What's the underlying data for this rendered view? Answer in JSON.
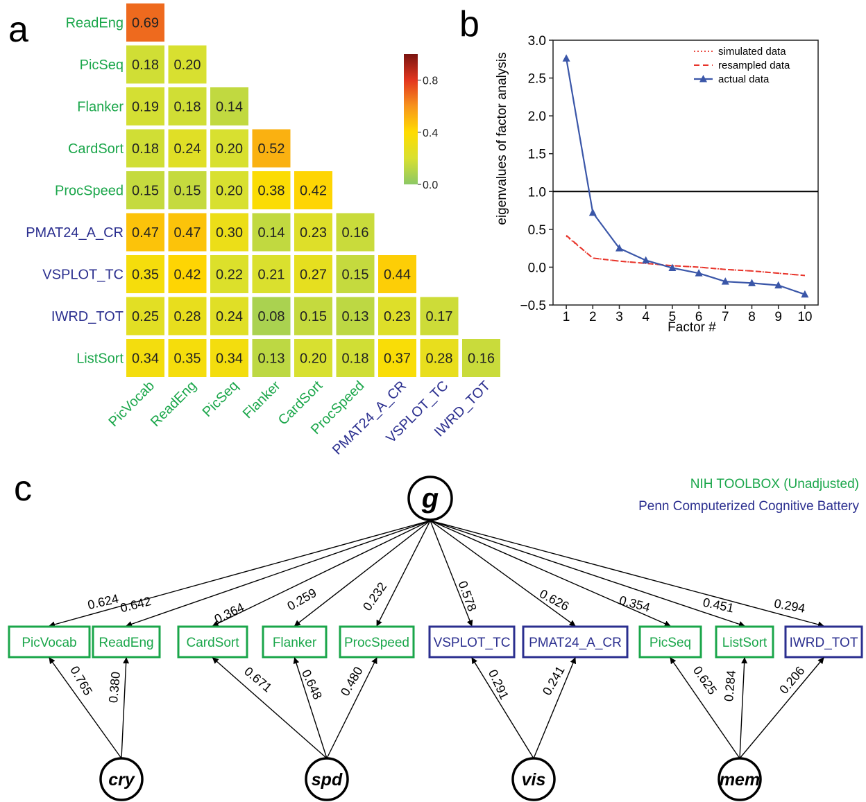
{
  "panel_labels": {
    "a": "a",
    "b": "b",
    "c": "c"
  },
  "colors": {
    "green": "#1aa64a",
    "blue": "#2b2f8f",
    "actual": "#3a56a8",
    "sim": "#e8342a"
  },
  "chart_data": [
    {
      "type": "heatmap",
      "panel": "a",
      "row_labels": [
        "ReadEng",
        "PicSeq",
        "Flanker",
        "CardSort",
        "ProcSpeed",
        "PMAT24_A_CR",
        "VSPLOT_TC",
        "IWRD_TOT",
        "ListSort"
      ],
      "col_labels": [
        "PicVocab",
        "ReadEng",
        "PicSeq",
        "Flanker",
        "CardSort",
        "ProcSpeed",
        "PMAT24_A_CR",
        "VSPLOT_TC",
        "IWRD_TOT"
      ],
      "row_colors": [
        "green",
        "green",
        "green",
        "green",
        "green",
        "blue",
        "blue",
        "blue",
        "green"
      ],
      "col_colors": [
        "green",
        "green",
        "green",
        "green",
        "green",
        "green",
        "blue",
        "blue",
        "blue"
      ],
      "values": [
        [
          0.69
        ],
        [
          0.18,
          0.2
        ],
        [
          0.19,
          0.18,
          0.14
        ],
        [
          0.18,
          0.24,
          0.2,
          0.52
        ],
        [
          0.15,
          0.15,
          0.2,
          0.38,
          0.42
        ],
        [
          0.47,
          0.47,
          0.3,
          0.14,
          0.23,
          0.16
        ],
        [
          0.35,
          0.42,
          0.22,
          0.21,
          0.27,
          0.15,
          0.44
        ],
        [
          0.25,
          0.28,
          0.24,
          0.08,
          0.15,
          0.13,
          0.23,
          0.17
        ],
        [
          0.34,
          0.35,
          0.34,
          0.13,
          0.2,
          0.18,
          0.37,
          0.28,
          0.16
        ]
      ],
      "colorbar": {
        "ticks": [
          0.0,
          0.4,
          0.8
        ],
        "tick_labels": [
          "0.0",
          "0.4",
          "0.8"
        ],
        "vmin": 0.0,
        "vmax": 1.0
      }
    },
    {
      "type": "line",
      "panel": "b",
      "xlabel": "Factor #",
      "ylabel": "eigenvalues of factor analysis",
      "x": [
        1,
        2,
        3,
        4,
        5,
        6,
        7,
        8,
        9,
        10
      ],
      "xlim": [
        0.5,
        10.5
      ],
      "ylim": [
        -0.5,
        3.0
      ],
      "xticks": [
        "1",
        "2",
        "3",
        "4",
        "5",
        "6",
        "7",
        "8",
        "9",
        "10"
      ],
      "yticks": [
        -0.5,
        0.0,
        0.5,
        1.0,
        1.5,
        2.0,
        2.5,
        3.0
      ],
      "ytick_labels": [
        "−0.5",
        "0.0",
        "0.5",
        "1.0",
        "1.5",
        "2.0",
        "2.5",
        "3.0"
      ],
      "hline": 1.0,
      "legend_position": "top-right",
      "series": [
        {
          "name": "simulated data",
          "style": "dotted",
          "values": [
            0.41,
            0.12,
            0.08,
            0.05,
            0.02,
            0.0,
            -0.03,
            -0.05,
            -0.08,
            -0.11
          ]
        },
        {
          "name": "resampled data",
          "style": "dashed",
          "values": [
            0.42,
            0.12,
            0.08,
            0.05,
            0.02,
            0.0,
            -0.03,
            -0.05,
            -0.08,
            -0.11
          ]
        },
        {
          "name": "actual data",
          "style": "solid-triangle",
          "values": [
            2.76,
            0.72,
            0.25,
            0.09,
            -0.01,
            -0.08,
            -0.19,
            -0.21,
            -0.24,
            -0.36
          ]
        }
      ]
    }
  ],
  "diagram": {
    "legend": [
      {
        "text": "NIH TOOLBOX (Unadjusted)",
        "color": "green"
      },
      {
        "text": "Penn Computerized Cognitive Battery",
        "color": "blue"
      }
    ],
    "general": "g",
    "latents": [
      "cry",
      "spd",
      "vis",
      "mem"
    ],
    "tests": [
      {
        "label": "PicVocab",
        "color": "green"
      },
      {
        "label": "ReadEng",
        "color": "green"
      },
      {
        "label": "CardSort",
        "color": "green"
      },
      {
        "label": "Flanker",
        "color": "green"
      },
      {
        "label": "ProcSpeed",
        "color": "green"
      },
      {
        "label": "VSPLOT_TC",
        "color": "blue"
      },
      {
        "label": "PMAT24_A_CR",
        "color": "blue"
      },
      {
        "label": "PicSeq",
        "color": "green"
      },
      {
        "label": "ListSort",
        "color": "green"
      },
      {
        "label": "IWRD_TOT",
        "color": "blue"
      }
    ],
    "g_loadings": [
      "0.624",
      "0.642",
      "0.364",
      "0.259",
      "0.232",
      "0.578",
      "0.626",
      "0.354",
      "0.451",
      "0.294"
    ],
    "specific_loadings": [
      {
        "latent": 0,
        "test": 0,
        "value": "0.765"
      },
      {
        "latent": 0,
        "test": 1,
        "value": "0.380"
      },
      {
        "latent": 1,
        "test": 2,
        "value": "0.671"
      },
      {
        "latent": 1,
        "test": 3,
        "value": "0.648"
      },
      {
        "latent": 1,
        "test": 4,
        "value": "0.480"
      },
      {
        "latent": 2,
        "test": 5,
        "value": "0.291"
      },
      {
        "latent": 2,
        "test": 6,
        "value": "0.241"
      },
      {
        "latent": 3,
        "test": 7,
        "value": "0.625"
      },
      {
        "latent": 3,
        "test": 8,
        "value": "0.284"
      },
      {
        "latent": 3,
        "test": 9,
        "value": "0.206"
      }
    ]
  }
}
